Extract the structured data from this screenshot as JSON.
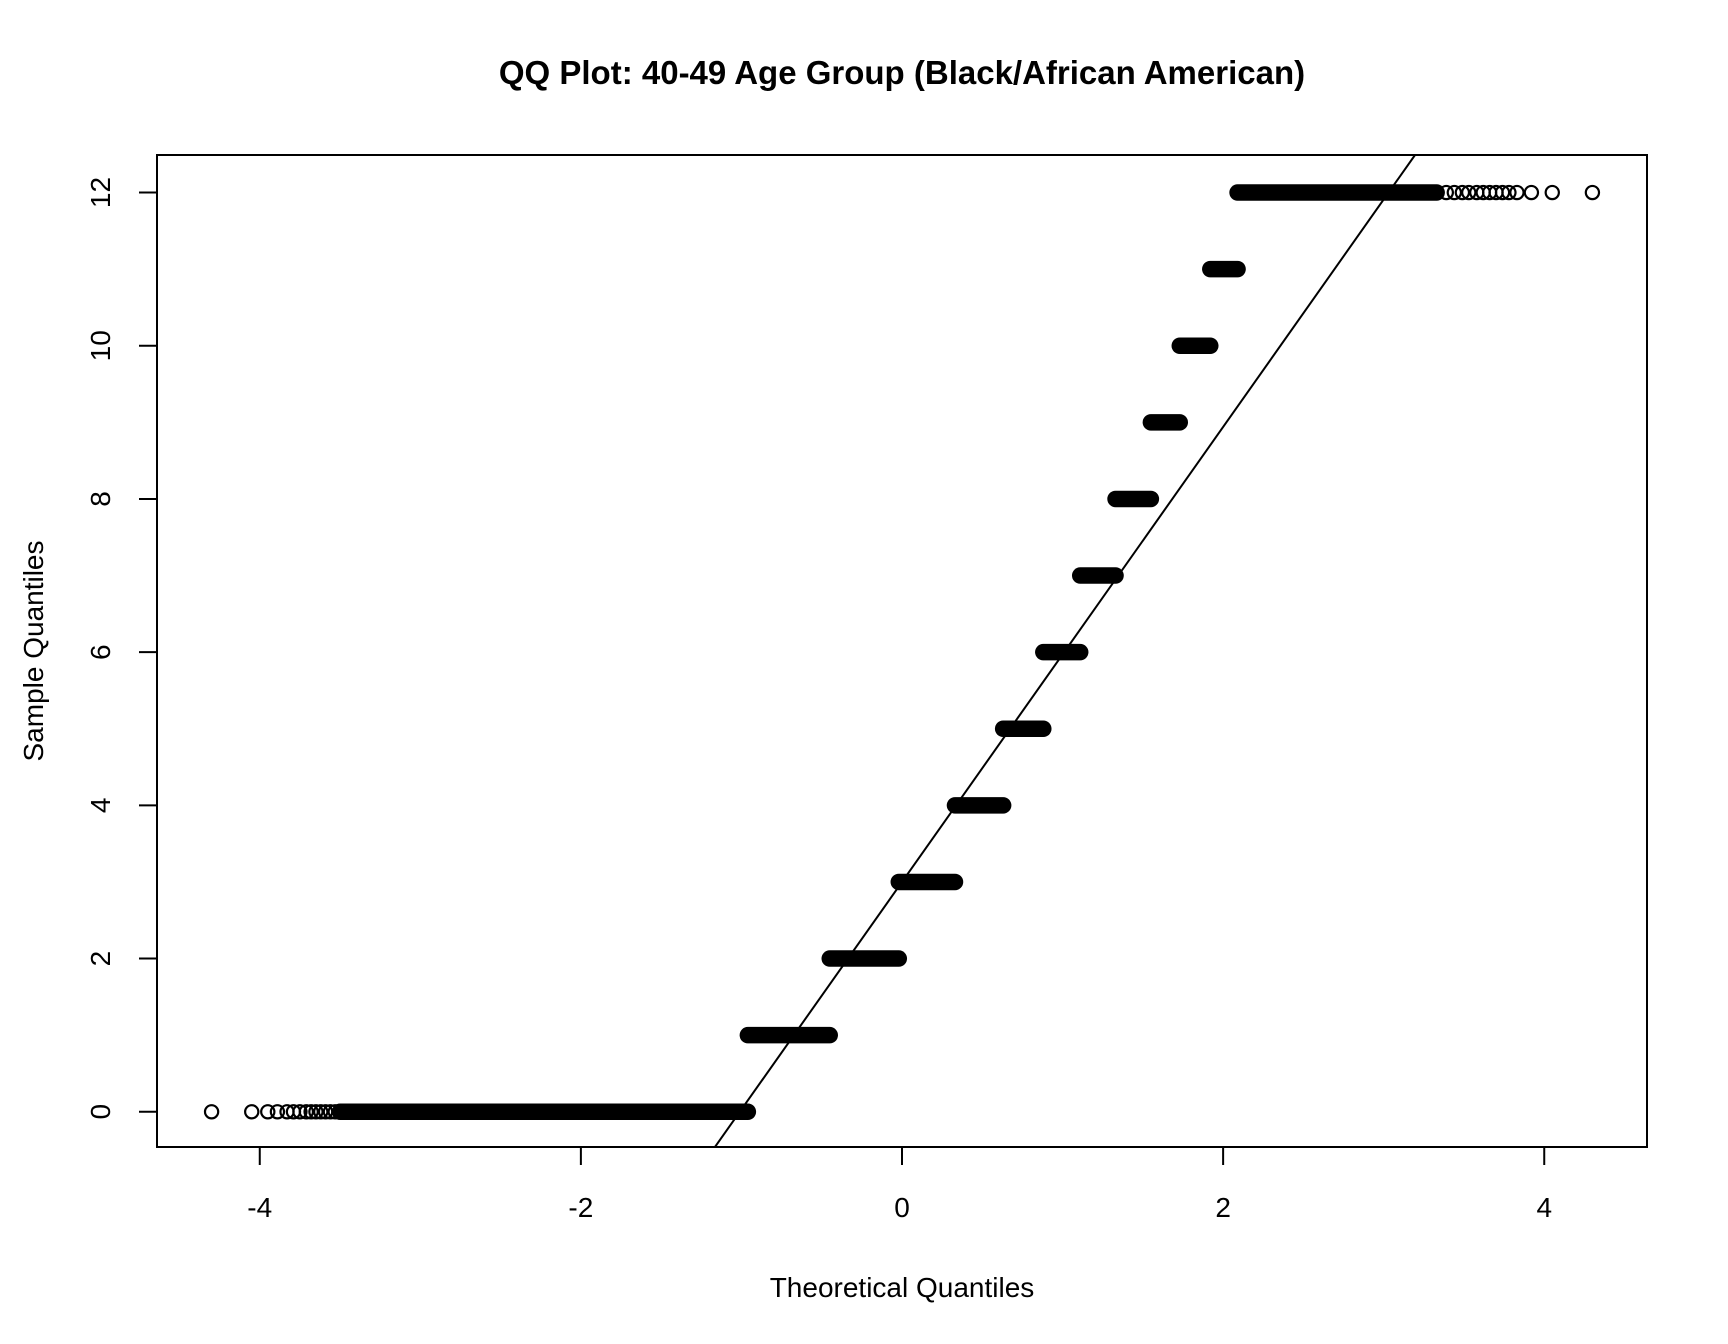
{
  "figure": {
    "background": "#ffffff",
    "foreground": "#000000"
  },
  "chart_data": {
    "type": "scatter",
    "subtype": "qq-plot",
    "title": "QQ Plot: 40-49 Age Group (Black/African American)",
    "xlabel": "Theoretical Quantiles",
    "ylabel": "Sample Quantiles",
    "x_ticks": [
      -4,
      -2,
      0,
      2,
      4
    ],
    "y_ticks": [
      0,
      2,
      4,
      6,
      8,
      10,
      12
    ],
    "xlim": [
      -4.64,
      4.64
    ],
    "ylim": [
      -0.46,
      12.49
    ],
    "grid": false,
    "legend": "none",
    "marker": "open-circle",
    "marker_color": "#000000",
    "background": "#ffffff",
    "reference_line": {
      "slope": 2.97,
      "intercept": 3.0
    },
    "bands": [
      {
        "y": 0,
        "q_from": -3.5,
        "q_to": -0.96
      },
      {
        "y": 1,
        "q_from": -0.96,
        "q_to": -0.45
      },
      {
        "y": 2,
        "q_from": -0.45,
        "q_to": -0.02
      },
      {
        "y": 3,
        "q_from": -0.02,
        "q_to": 0.33
      },
      {
        "y": 4,
        "q_from": 0.33,
        "q_to": 0.63
      },
      {
        "y": 5,
        "q_from": 0.63,
        "q_to": 0.88
      },
      {
        "y": 6,
        "q_from": 0.88,
        "q_to": 1.11
      },
      {
        "y": 7,
        "q_from": 1.11,
        "q_to": 1.33
      },
      {
        "y": 8,
        "q_from": 1.33,
        "q_to": 1.55
      },
      {
        "y": 9,
        "q_from": 1.55,
        "q_to": 1.73
      },
      {
        "y": 10,
        "q_from": 1.73,
        "q_to": 1.92
      },
      {
        "y": 11,
        "q_from": 1.92,
        "q_to": 2.09
      },
      {
        "y": 12,
        "q_from": 2.09,
        "q_to": 3.33
      }
    ],
    "outlier_points": [
      {
        "y": 0,
        "q": [
          -4.3,
          -4.05,
          -3.95,
          -3.89,
          -3.83,
          -3.79,
          -3.75,
          -3.71,
          -3.68,
          -3.65,
          -3.62,
          -3.59,
          -3.56,
          -3.53
        ]
      },
      {
        "y": 12,
        "q": [
          3.39,
          3.44,
          3.49,
          3.53,
          3.58,
          3.62,
          3.66,
          3.7,
          3.74,
          3.78,
          3.83,
          3.92,
          4.05,
          4.3
        ]
      }
    ]
  }
}
